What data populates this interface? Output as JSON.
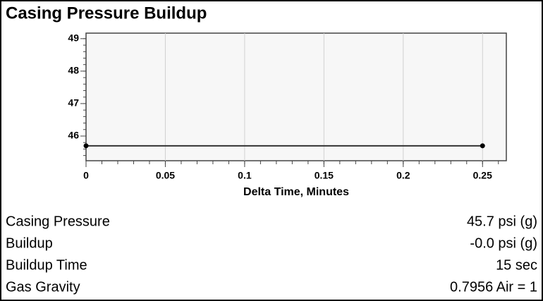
{
  "chart_data": {
    "type": "line",
    "title": "Casing Pressure Buildup",
    "x_label": "Delta Time, Minutes",
    "x": [
      0,
      0.25
    ],
    "series": [
      {
        "color": "#333333",
        "values": [
          45.7,
          45.7
        ]
      }
    ],
    "xlim": [
      0,
      0.265
    ],
    "xticks": [
      0,
      0.05,
      0.1,
      0.15,
      0.2,
      0.25
    ],
    "ylim": [
      45.24,
      49.17
    ],
    "yticks": [
      46,
      47,
      48,
      49
    ],
    "grid": true
  },
  "info": [
    {
      "label": "Casing Pressure",
      "value": "45.7 psi (g)"
    },
    {
      "label": "Buildup",
      "value": "-0.0 psi (g)"
    },
    {
      "label": "Buildup Time",
      "value": "15 sec"
    },
    {
      "label": "Gas Gravity",
      "value": "0.7956 Air = 1"
    }
  ]
}
